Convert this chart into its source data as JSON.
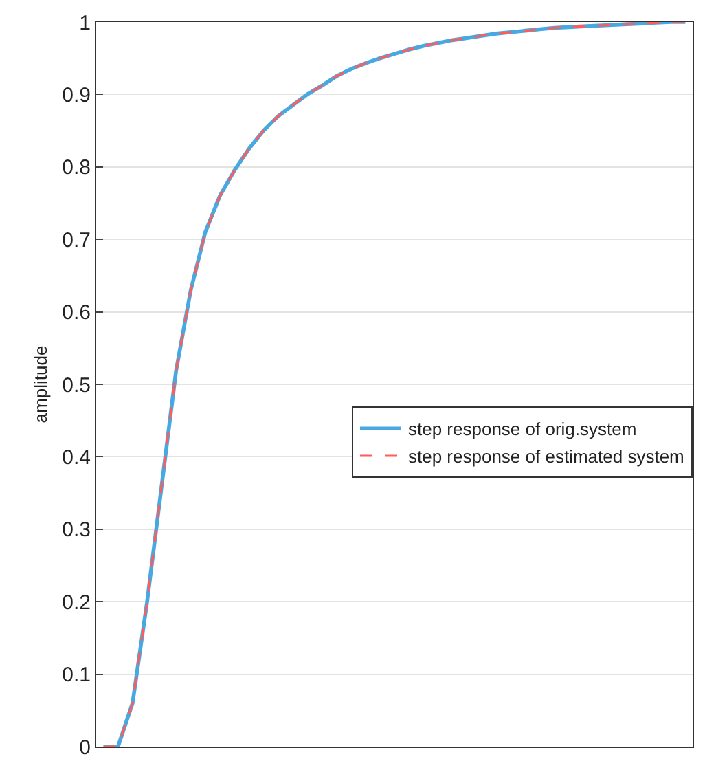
{
  "chart_data": {
    "type": "line",
    "ylabel": "amplitude",
    "categories": [
      null,
      null,
      null,
      null,
      null,
      null,
      null,
      null,
      null,
      null,
      null,
      null,
      null,
      null,
      null,
      null,
      null,
      null,
      null,
      null,
      null,
      null,
      null,
      null,
      null,
      null,
      null,
      null,
      null,
      null,
      null,
      null,
      null,
      null,
      null,
      null,
      null,
      null,
      null,
      null,
      null
    ],
    "series": [
      {
        "name": "step response of orig.system",
        "color": "#4aa8e0",
        "line_style": "solid",
        "values": [
          0,
          0,
          0.06,
          0.2,
          0.36,
          0.52,
          0.63,
          0.71,
          0.76,
          0.795,
          0.825,
          0.85,
          0.87,
          0.885,
          0.9,
          0.912,
          0.925,
          0.935,
          0.943,
          0.95,
          0.956,
          0.962,
          0.967,
          0.971,
          0.975,
          0.978,
          0.981,
          0.984,
          0.986,
          0.988,
          0.99,
          0.992,
          0.993,
          0.994,
          0.995,
          0.996,
          0.997,
          0.998,
          0.999,
          1,
          1
        ]
      },
      {
        "name": "step response of estimated system",
        "color": "#ff5c5c",
        "line_style": "dashed",
        "values": [
          0,
          0,
          0.06,
          0.2,
          0.36,
          0.52,
          0.63,
          0.71,
          0.76,
          0.795,
          0.825,
          0.85,
          0.87,
          0.885,
          0.9,
          0.912,
          0.925,
          0.935,
          0.943,
          0.95,
          0.956,
          0.962,
          0.967,
          0.971,
          0.975,
          0.978,
          0.981,
          0.984,
          0.986,
          0.988,
          0.99,
          0.992,
          0.993,
          0.994,
          0.995,
          0.996,
          0.997,
          0.998,
          0.999,
          1,
          1
        ]
      }
    ],
    "ylim": [
      0,
      1
    ],
    "yticks": [
      0,
      0.1,
      0.2,
      0.3,
      0.4,
      0.5,
      0.6,
      0.7,
      0.8,
      0.9,
      1
    ],
    "grid": "y",
    "legend": "right",
    "marker": "none"
  }
}
